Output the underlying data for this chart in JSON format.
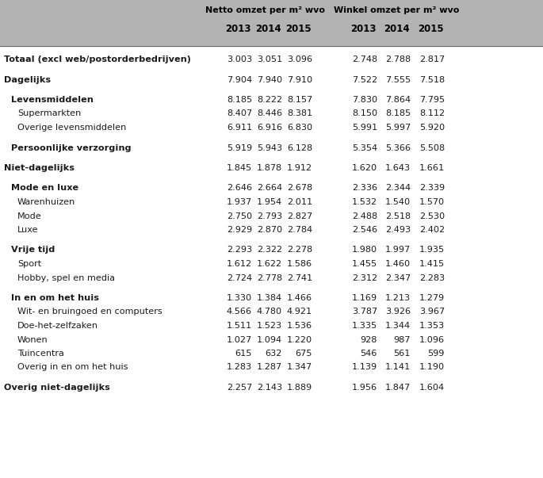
{
  "header_bg_color": "#b3b3b3",
  "header_text_color": "#000000",
  "body_bg_color": "#ffffff",
  "body_text_color": "#1a1a1a",
  "year_headers": [
    "2013",
    "2014",
    "2015",
    "2013",
    "2014",
    "2015"
  ],
  "rows": [
    {
      "label": "Totaal (excl web/postorderbedrijven)",
      "indent": 0,
      "bold": true,
      "spacer_before": true,
      "values": [
        "3.003",
        "3.051",
        "3.096",
        "2.748",
        "2.788",
        "2.817"
      ]
    },
    {
      "label": "Dagelijks",
      "indent": 0,
      "bold": true,
      "spacer_before": true,
      "values": [
        "7.904",
        "7.940",
        "7.910",
        "7.522",
        "7.555",
        "7.518"
      ]
    },
    {
      "label": "Levensmiddelen",
      "indent": 1,
      "bold": true,
      "spacer_before": true,
      "values": [
        "8.185",
        "8.222",
        "8.157",
        "7.830",
        "7.864",
        "7.795"
      ]
    },
    {
      "label": "Supermarkten",
      "indent": 2,
      "bold": false,
      "spacer_before": false,
      "values": [
        "8.407",
        "8.446",
        "8.381",
        "8.150",
        "8.185",
        "8.112"
      ]
    },
    {
      "label": "Overige levensmiddelen",
      "indent": 2,
      "bold": false,
      "spacer_before": false,
      "values": [
        "6.911",
        "6.916",
        "6.830",
        "5.991",
        "5.997",
        "5.920"
      ]
    },
    {
      "label": "Persoonlijke verzorging",
      "indent": 1,
      "bold": true,
      "spacer_before": true,
      "values": [
        "5.919",
        "5.943",
        "6.128",
        "5.354",
        "5.366",
        "5.508"
      ]
    },
    {
      "label": "Niet-dagelijks",
      "indent": 0,
      "bold": true,
      "spacer_before": true,
      "values": [
        "1.845",
        "1.878",
        "1.912",
        "1.620",
        "1.643",
        "1.661"
      ]
    },
    {
      "label": "Mode en luxe",
      "indent": 1,
      "bold": true,
      "spacer_before": true,
      "values": [
        "2.646",
        "2.664",
        "2.678",
        "2.336",
        "2.344",
        "2.339"
      ]
    },
    {
      "label": "Warenhuizen",
      "indent": 2,
      "bold": false,
      "spacer_before": false,
      "values": [
        "1.937",
        "1.954",
        "2.011",
        "1.532",
        "1.540",
        "1.570"
      ]
    },
    {
      "label": "Mode",
      "indent": 2,
      "bold": false,
      "spacer_before": false,
      "values": [
        "2.750",
        "2.793",
        "2.827",
        "2.488",
        "2.518",
        "2.530"
      ]
    },
    {
      "label": "Luxe",
      "indent": 2,
      "bold": false,
      "spacer_before": false,
      "values": [
        "2.929",
        "2.870",
        "2.784",
        "2.546",
        "2.493",
        "2.402"
      ]
    },
    {
      "label": "Vrije tijd",
      "indent": 1,
      "bold": true,
      "spacer_before": true,
      "values": [
        "2.293",
        "2.322",
        "2.278",
        "1.980",
        "1.997",
        "1.935"
      ]
    },
    {
      "label": "Sport",
      "indent": 2,
      "bold": false,
      "spacer_before": false,
      "values": [
        "1.612",
        "1.622",
        "1.586",
        "1.455",
        "1.460",
        "1.415"
      ]
    },
    {
      "label": "Hobby, spel en media",
      "indent": 2,
      "bold": false,
      "spacer_before": false,
      "values": [
        "2.724",
        "2.778",
        "2.741",
        "2.312",
        "2.347",
        "2.283"
      ]
    },
    {
      "label": "In en om het huis",
      "indent": 1,
      "bold": true,
      "spacer_before": true,
      "values": [
        "1.330",
        "1.384",
        "1.466",
        "1.169",
        "1.213",
        "1.279"
      ]
    },
    {
      "label": "Wit- en bruingoed en computers",
      "indent": 2,
      "bold": false,
      "spacer_before": false,
      "values": [
        "4.566",
        "4.780",
        "4.921",
        "3.787",
        "3.926",
        "3.967"
      ]
    },
    {
      "label": "Doe-het-zelfzaken",
      "indent": 2,
      "bold": false,
      "spacer_before": false,
      "values": [
        "1.511",
        "1.523",
        "1.536",
        "1.335",
        "1.344",
        "1.353"
      ]
    },
    {
      "label": "Wonen",
      "indent": 2,
      "bold": false,
      "spacer_before": false,
      "values": [
        "1.027",
        "1.094",
        "1.220",
        "928",
        "987",
        "1.096"
      ]
    },
    {
      "label": "Tuincentra",
      "indent": 2,
      "bold": false,
      "spacer_before": false,
      "values": [
        "615",
        "632",
        "675",
        "546",
        "561",
        "599"
      ]
    },
    {
      "label": "Overig in en om het huis",
      "indent": 2,
      "bold": false,
      "spacer_before": false,
      "values": [
        "1.283",
        "1.287",
        "1.347",
        "1.139",
        "1.141",
        "1.190"
      ]
    },
    {
      "label": "Overig niet-dagelijks",
      "indent": 0,
      "bold": true,
      "spacer_before": true,
      "values": [
        "2.257",
        "2.143",
        "1.889",
        "1.956",
        "1.847",
        "1.604"
      ]
    }
  ],
  "figsize": [
    6.85,
    6.03
  ],
  "dpi": 100
}
